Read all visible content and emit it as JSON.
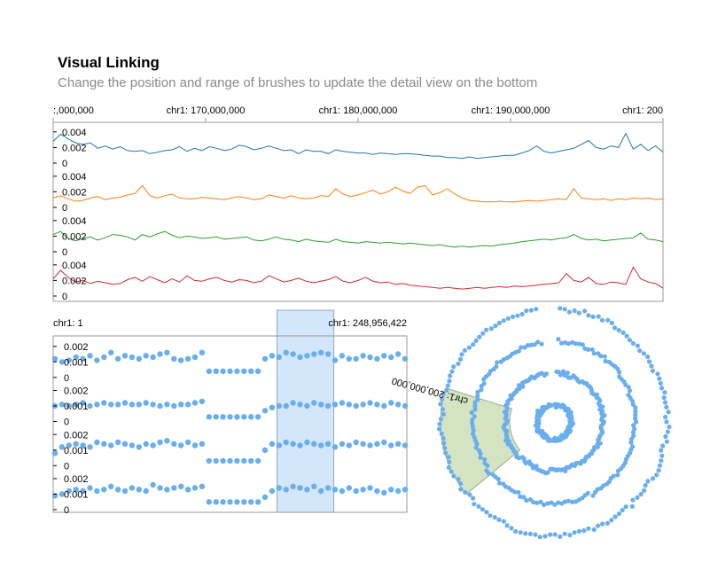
{
  "header": {
    "title": "Visual Linking",
    "subtitle": "Change the position and range of brushes to update the detail view on the bottom"
  },
  "colors": {
    "series": [
      "#1f77b4",
      "#ff7f0e",
      "#2ca02c",
      "#d62728"
    ],
    "points": "#6aaeed",
    "brush_linear": "#a9cdf4",
    "brush_circular": "#b8d29a"
  },
  "chart_data": [
    {
      "type": "line",
      "role": "detail-view",
      "xlabel": "",
      "ylabel": "",
      "x_ticks": [
        ":,000,000",
        "chr1: 170,000,000",
        "chr1: 180,000,000",
        "chr1: 190,000,000",
        "chr1: 200"
      ],
      "x_tick_positions": [
        160000000,
        170000000,
        180000000,
        190000000,
        200000000
      ],
      "xlim": [
        160000000,
        200000000
      ],
      "ylim": [
        0,
        0.005
      ],
      "y_ticks": [
        "0.004",
        "0.002",
        "0"
      ],
      "series": [
        {
          "values": [
            0.0028,
            0.0037,
            0.0031,
            0.0026,
            0.0024,
            0.0026,
            0.0019,
            0.0022,
            0.0018,
            0.0021,
            0.0016,
            0.0015,
            0.0016,
            0.0012,
            0.0014,
            0.0016,
            0.0017,
            0.0021,
            0.0015,
            0.0019,
            0.0016,
            0.0021,
            0.0019,
            0.0016,
            0.0018,
            0.0023,
            0.0021,
            0.0017,
            0.0019,
            0.0022,
            0.0019,
            0.0016,
            0.0017,
            0.0012,
            0.0017,
            0.0015,
            0.0015,
            0.0012,
            0.0017,
            0.0015,
            0.0014,
            0.0013,
            0.0013,
            0.0011,
            0.0013,
            0.0012,
            0.0011,
            0.0012,
            0.0012,
            0.0011,
            0.001,
            0.0009,
            0.0009,
            0.0007,
            0.0007,
            0.0006,
            0.0008,
            0.0006,
            0.0007,
            0.0008,
            0.0009,
            0.001,
            0.001,
            0.0013,
            0.0016,
            0.0022,
            0.0015,
            0.0013,
            0.0015,
            0.0017,
            0.0019,
            0.0024,
            0.0029,
            0.002,
            0.0018,
            0.0022,
            0.002,
            0.0038,
            0.0018,
            0.0024,
            0.0016,
            0.0022,
            0.0014
          ]
        },
        {
          "values": [
            0.0012,
            0.0015,
            0.0011,
            0.0008,
            0.0009,
            0.0012,
            0.0014,
            0.001,
            0.0012,
            0.0013,
            0.0016,
            0.0018,
            0.0028,
            0.0015,
            0.0012,
            0.0015,
            0.0017,
            0.0012,
            0.0011,
            0.0011,
            0.0013,
            0.0012,
            0.0011,
            0.001,
            0.0012,
            0.0014,
            0.0012,
            0.001,
            0.0011,
            0.0016,
            0.0014,
            0.0012,
            0.0015,
            0.0012,
            0.0011,
            0.0012,
            0.0015,
            0.0014,
            0.0024,
            0.0017,
            0.0014,
            0.0016,
            0.0019,
            0.0022,
            0.0017,
            0.002,
            0.0026,
            0.0021,
            0.0018,
            0.0026,
            0.0028,
            0.0016,
            0.0019,
            0.0024,
            0.0017,
            0.0012,
            0.0009,
            0.0008,
            0.0007,
            0.0007,
            0.0008,
            0.0007,
            0.0007,
            0.0008,
            0.0009,
            0.0008,
            0.0009,
            0.001,
            0.0011,
            0.001,
            0.0024,
            0.0012,
            0.0011,
            0.001,
            0.0011,
            0.0009,
            0.0011,
            0.001,
            0.0012,
            0.0011,
            0.0012,
            0.001,
            0.0011
          ]
        },
        {
          "values": [
            0.0022,
            0.0026,
            0.0017,
            0.0014,
            0.0017,
            0.0019,
            0.0015,
            0.0018,
            0.0022,
            0.0021,
            0.0019,
            0.0015,
            0.0022,
            0.0019,
            0.0023,
            0.0026,
            0.0021,
            0.0018,
            0.002,
            0.0019,
            0.0017,
            0.0018,
            0.0019,
            0.0016,
            0.0017,
            0.0018,
            0.0019,
            0.0015,
            0.0014,
            0.0016,
            0.0019,
            0.0016,
            0.0015,
            0.0013,
            0.0016,
            0.0014,
            0.0013,
            0.0012,
            0.0016,
            0.0013,
            0.0012,
            0.0011,
            0.0013,
            0.0012,
            0.0011,
            0.0012,
            0.0011,
            0.001,
            0.0011,
            0.001,
            0.0009,
            0.0008,
            0.0009,
            0.0007,
            0.0006,
            0.0007,
            0.0006,
            0.0007,
            0.0008,
            0.0007,
            0.0009,
            0.001,
            0.0011,
            0.0013,
            0.0014,
            0.0015,
            0.0016,
            0.0015,
            0.0017,
            0.0018,
            0.0022,
            0.0017,
            0.0015,
            0.0016,
            0.0014,
            0.0015,
            0.0016,
            0.0017,
            0.0018,
            0.0024,
            0.0016,
            0.0015,
            0.0013
          ]
        },
        {
          "values": [
            0.0022,
            0.0033,
            0.0024,
            0.0018,
            0.002,
            0.0016,
            0.0019,
            0.0017,
            0.0015,
            0.0016,
            0.0021,
            0.0024,
            0.0019,
            0.0025,
            0.0021,
            0.0017,
            0.0022,
            0.0018,
            0.0026,
            0.002,
            0.0019,
            0.0022,
            0.0024,
            0.002,
            0.0018,
            0.0021,
            0.002,
            0.0017,
            0.0019,
            0.0026,
            0.0022,
            0.0018,
            0.002,
            0.0023,
            0.0019,
            0.0017,
            0.0019,
            0.0021,
            0.0025,
            0.0019,
            0.0017,
            0.002,
            0.0024,
            0.0019,
            0.0017,
            0.0018,
            0.0015,
            0.0016,
            0.0014,
            0.0013,
            0.0012,
            0.0011,
            0.001,
            0.0011,
            0.001,
            0.0009,
            0.001,
            0.0011,
            0.001,
            0.0011,
            0.0012,
            0.0011,
            0.0013,
            0.0012,
            0.0013,
            0.0014,
            0.0015,
            0.0016,
            0.0017,
            0.0029,
            0.002,
            0.0018,
            0.0024,
            0.0016,
            0.0015,
            0.0018,
            0.0017,
            0.0015,
            0.0037,
            0.0022,
            0.0018,
            0.0016,
            0.001
          ]
        }
      ]
    },
    {
      "type": "scatter",
      "role": "overview-linear",
      "x_ticks": [
        "chr1: 1",
        "chr1: 248,956,422"
      ],
      "xlim": [
        1,
        248956422
      ],
      "ylim": [
        0,
        0.0025
      ],
      "y_ticks": [
        "0.002",
        "0.001",
        "0"
      ],
      "brush": [
        160000000,
        200000000
      ],
      "series": [
        {
          "values": [
            0.0012,
            0.001,
            0.0011,
            0.0013,
            0.0012,
            0.0014,
            0.0011,
            0.0013,
            0.0016,
            0.0012,
            0.0014,
            0.0013,
            0.0012,
            0.0014,
            0.0013,
            0.0015,
            0.0016,
            0.0012,
            0.0011,
            0.0012,
            0.0013,
            0.0016,
            0.0004,
            0.0004,
            0.0004,
            0.0004,
            0.0004,
            0.0004,
            0.0004,
            0.0004,
            0.0012,
            0.0014,
            0.0013,
            0.0016,
            0.0015,
            0.0013,
            0.0014,
            0.0015,
            0.0016,
            0.0015,
            0.0011,
            0.0014,
            0.0012,
            0.0012,
            0.0014,
            0.0013,
            0.0012,
            0.0014,
            0.0013,
            0.0015,
            0.0012
          ]
        },
        {
          "values": [
            0.001,
            0.0011,
            0.001,
            0.0011,
            0.0012,
            0.001,
            0.0011,
            0.0012,
            0.0011,
            0.0011,
            0.0012,
            0.0011,
            0.0011,
            0.0012,
            0.0011,
            0.001,
            0.0011,
            0.001,
            0.0011,
            0.0011,
            0.0012,
            0.0013,
            0.0003,
            0.0003,
            0.0003,
            0.0003,
            0.0003,
            0.0003,
            0.0003,
            0.0003,
            0.0007,
            0.0009,
            0.001,
            0.001,
            0.0012,
            0.0011,
            0.001,
            0.0012,
            0.0011,
            0.001,
            0.0011,
            0.0012,
            0.0011,
            0.001,
            0.0011,
            0.0012,
            0.0011,
            0.001,
            0.0012,
            0.0011,
            0.001
          ]
        },
        {
          "values": [
            0.0008,
            0.0012,
            0.0013,
            0.0014,
            0.0013,
            0.0012,
            0.0015,
            0.0014,
            0.0013,
            0.0015,
            0.0014,
            0.0013,
            0.0012,
            0.0014,
            0.0013,
            0.0015,
            0.0016,
            0.0014,
            0.0013,
            0.0015,
            0.0013,
            0.0014,
            0.0003,
            0.0003,
            0.0003,
            0.0003,
            0.0003,
            0.0003,
            0.0003,
            0.0003,
            0.001,
            0.0014,
            0.0013,
            0.0015,
            0.0014,
            0.0013,
            0.0015,
            0.0014,
            0.0013,
            0.0014,
            0.0012,
            0.0014,
            0.0013,
            0.0015,
            0.0014,
            0.0013,
            0.0014,
            0.0015,
            0.0013,
            0.0014,
            0.0013
          ]
        },
        {
          "values": [
            0.0009,
            0.001,
            0.0012,
            0.0013,
            0.0012,
            0.0014,
            0.0012,
            0.0013,
            0.0015,
            0.0013,
            0.0012,
            0.0014,
            0.0013,
            0.0012,
            0.0016,
            0.0014,
            0.0013,
            0.0014,
            0.0015,
            0.0013,
            0.0014,
            0.0015,
            0.0005,
            0.0005,
            0.0005,
            0.0005,
            0.0005,
            0.0005,
            0.0005,
            0.0005,
            0.0008,
            0.0012,
            0.0014,
            0.0013,
            0.0015,
            0.0014,
            0.0013,
            0.0015,
            0.0012,
            0.0014,
            0.0013,
            0.0012,
            0.0014,
            0.0012,
            0.0013,
            0.0014,
            0.0012,
            0.0011,
            0.0013,
            0.0012,
            0.0013
          ]
        }
      ]
    },
    {
      "type": "scatter",
      "role": "overview-circular",
      "tick_label": "chr1: 200,000,000",
      "brush": [
        160000000,
        200000000
      ],
      "series_count": 4
    }
  ]
}
